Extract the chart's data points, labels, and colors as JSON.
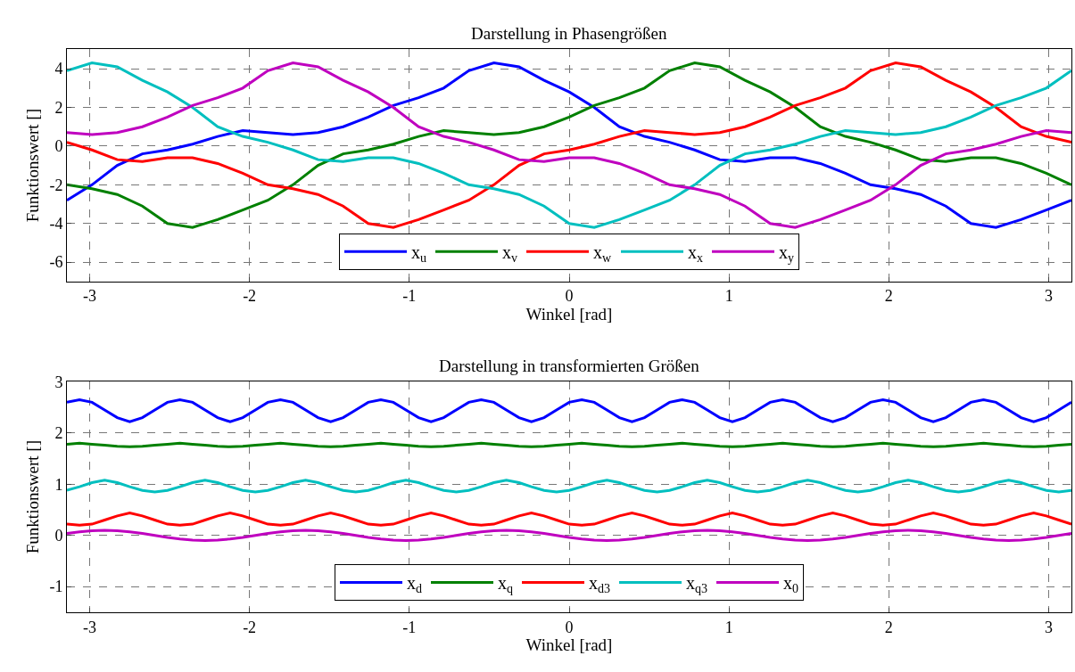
{
  "chart_data": [
    {
      "type": "line",
      "title": "Darstellung in Phasengrößen",
      "xlabel": "Winkel [rad]",
      "ylabel": "Funktionswert []",
      "xlim": [
        -3.142,
        3.142
      ],
      "ylim": [
        -7,
        5
      ],
      "xticks": [
        -3,
        -2,
        -1,
        0,
        1,
        2,
        3
      ],
      "yticks": [
        -6,
        -4,
        -2,
        0,
        2,
        4
      ],
      "grid": true,
      "legend": "bottom",
      "x": [
        -3.142,
        -2.985,
        -2.827,
        -2.67,
        -2.513,
        -2.356,
        -2.199,
        -2.042,
        -1.885,
        -1.728,
        -1.571,
        -1.414,
        -1.257,
        -1.1,
        -0.942,
        -0.785,
        -0.628,
        -0.471,
        -0.314,
        -0.157,
        0,
        0.157,
        0.314,
        0.471,
        0.628,
        0.785,
        0.942,
        1.1,
        1.257,
        1.414,
        1.571,
        1.728,
        1.885,
        2.042,
        2.199,
        2.356,
        2.513,
        2.67,
        2.827,
        2.985,
        3.142
      ],
      "series": [
        {
          "name": "x$_{u}$",
          "color": "#0000ff",
          "values": [
            -2.8,
            -2.0,
            -1.0,
            -0.4,
            -0.2,
            0.1,
            0.5,
            0.8,
            0.7,
            0.6,
            0.7,
            1.0,
            1.5,
            2.1,
            2.5,
            3.0,
            3.9,
            4.3,
            4.1,
            3.4,
            2.8,
            2.0,
            1.0,
            0.5,
            0.2,
            -0.2,
            -0.7,
            -0.8,
            -0.6,
            -0.6,
            -0.9,
            -1.4,
            -2.0,
            -2.2,
            -2.5,
            -3.1,
            -4.0,
            -4.2,
            -3.8,
            -3.3,
            -2.8
          ]
        },
        {
          "name": "x$_{v}$",
          "color": "#008000",
          "values": [
            -2.0,
            -2.2,
            -2.5,
            -3.1,
            -4.0,
            -4.2,
            -3.8,
            -3.3,
            -2.8,
            -2.0,
            -1.0,
            -0.4,
            -0.2,
            0.1,
            0.5,
            0.8,
            0.7,
            0.6,
            0.7,
            1.0,
            1.5,
            2.1,
            2.5,
            3.0,
            3.9,
            4.3,
            4.1,
            3.4,
            2.8,
            2.0,
            1.0,
            0.5,
            0.2,
            -0.2,
            -0.7,
            -0.8,
            -0.6,
            -0.6,
            -0.9,
            -1.4,
            -2.0
          ]
        },
        {
          "name": "x$_{w}$",
          "color": "#ff0000",
          "values": [
            0.2,
            -0.2,
            -0.7,
            -0.8,
            -0.6,
            -0.6,
            -0.9,
            -1.4,
            -2.0,
            -2.2,
            -2.5,
            -3.1,
            -4.0,
            -4.2,
            -3.8,
            -3.3,
            -2.8,
            -2.0,
            -1.0,
            -0.4,
            -0.2,
            0.1,
            0.5,
            0.8,
            0.7,
            0.6,
            0.7,
            1.0,
            1.5,
            2.1,
            2.5,
            3.0,
            3.9,
            4.3,
            4.1,
            3.4,
            2.8,
            2.0,
            1.0,
            0.5,
            0.2
          ]
        },
        {
          "name": "x$_{x}$",
          "color": "#00bfbf",
          "values": [
            3.9,
            4.3,
            4.1,
            3.4,
            2.8,
            2.0,
            1.0,
            0.5,
            0.2,
            -0.2,
            -0.7,
            -0.8,
            -0.6,
            -0.6,
            -0.9,
            -1.4,
            -2.0,
            -2.2,
            -2.5,
            -3.1,
            -4.0,
            -4.2,
            -3.8,
            -3.3,
            -2.8,
            -2.0,
            -1.0,
            -0.4,
            -0.2,
            0.1,
            0.5,
            0.8,
            0.7,
            0.6,
            0.7,
            1.0,
            1.5,
            2.1,
            2.5,
            3.0,
            3.9
          ]
        },
        {
          "name": "x$_{y}$",
          "color": "#bf00bf",
          "values": [
            0.7,
            0.6,
            0.7,
            1.0,
            1.5,
            2.1,
            2.5,
            3.0,
            3.9,
            4.3,
            4.1,
            3.4,
            2.8,
            2.0,
            1.0,
            0.5,
            0.2,
            -0.2,
            -0.7,
            -0.8,
            -0.6,
            -0.6,
            -0.9,
            -1.4,
            -2.0,
            -2.2,
            -2.5,
            -3.1,
            -4.0,
            -4.2,
            -3.8,
            -3.3,
            -2.8,
            -2.0,
            -1.0,
            -0.4,
            -0.2,
            0.1,
            0.5,
            0.8,
            0.7
          ]
        }
      ]
    },
    {
      "type": "line",
      "title": "Darstellung in transformierten Größen",
      "xlabel": "Winkel [rad]",
      "ylabel": "Funktionswert []",
      "xlim": [
        -3.142,
        3.142
      ],
      "ylim": [
        -1.5,
        3
      ],
      "xticks": [
        -3,
        -2,
        -1,
        0,
        1,
        2,
        3
      ],
      "yticks": [
        -1,
        0,
        1,
        2,
        3
      ],
      "grid": true,
      "legend": "bottom",
      "x": [
        -3.142,
        -3.063,
        -2.985,
        -2.906,
        -2.827,
        -2.749,
        -2.67,
        -2.592,
        -2.513,
        -2.435,
        -2.356,
        -2.278,
        -2.199,
        -2.121,
        -2.042,
        -1.963,
        -1.885,
        -1.806,
        -1.728,
        -1.649,
        -1.571,
        -1.492,
        -1.414,
        -1.335,
        -1.257,
        -1.178,
        -1.1,
        -1.021,
        -0.942,
        -0.864,
        -0.785,
        -0.707,
        -0.628,
        -0.55,
        -0.471,
        -0.393,
        -0.314,
        -0.236,
        -0.157,
        -0.079,
        0,
        0.079,
        0.157,
        0.236,
        0.314,
        0.393,
        0.471,
        0.55,
        0.628,
        0.707,
        0.785,
        0.864,
        0.942,
        1.021,
        1.1,
        1.178,
        1.257,
        1.335,
        1.414,
        1.492,
        1.571,
        1.649,
        1.728,
        1.806,
        1.885,
        1.963,
        2.042,
        2.121,
        2.199,
        2.278,
        2.356,
        2.435,
        2.513,
        2.592,
        2.67,
        2.749,
        2.827,
        2.906,
        2.985,
        3.063,
        3.142
      ],
      "series": [
        {
          "name": "x$_{d}$",
          "color": "#0000ff",
          "values": [
            2.6,
            2.65,
            2.6,
            2.45,
            2.3,
            2.22,
            2.3,
            2.45,
            2.6,
            2.65,
            2.6,
            2.45,
            2.3,
            2.22,
            2.3,
            2.45,
            2.6,
            2.65,
            2.6,
            2.45,
            2.3,
            2.22,
            2.3,
            2.45,
            2.6,
            2.65,
            2.6,
            2.45,
            2.3,
            2.22,
            2.3,
            2.45,
            2.6,
            2.65,
            2.6,
            2.45,
            2.3,
            2.22,
            2.3,
            2.45,
            2.6,
            2.65,
            2.6,
            2.45,
            2.3,
            2.22,
            2.3,
            2.45,
            2.6,
            2.65,
            2.6,
            2.45,
            2.3,
            2.22,
            2.3,
            2.45,
            2.6,
            2.65,
            2.6,
            2.45,
            2.3,
            2.22,
            2.3,
            2.45,
            2.6,
            2.65,
            2.6,
            2.45,
            2.3,
            2.22,
            2.3,
            2.45,
            2.6,
            2.65,
            2.6,
            2.45,
            2.3,
            2.22,
            2.3,
            2.45,
            2.6
          ]
        },
        {
          "name": "x$_{q}$",
          "color": "#008000",
          "values": [
            1.78,
            1.8,
            1.78,
            1.76,
            1.74,
            1.73,
            1.74,
            1.76,
            1.78,
            1.8,
            1.78,
            1.76,
            1.74,
            1.73,
            1.74,
            1.76,
            1.78,
            1.8,
            1.78,
            1.76,
            1.74,
            1.73,
            1.74,
            1.76,
            1.78,
            1.8,
            1.78,
            1.76,
            1.74,
            1.73,
            1.74,
            1.76,
            1.78,
            1.8,
            1.78,
            1.76,
            1.74,
            1.73,
            1.74,
            1.76,
            1.78,
            1.8,
            1.78,
            1.76,
            1.74,
            1.73,
            1.74,
            1.76,
            1.78,
            1.8,
            1.78,
            1.76,
            1.74,
            1.73,
            1.74,
            1.76,
            1.78,
            1.8,
            1.78,
            1.76,
            1.74,
            1.73,
            1.74,
            1.76,
            1.78,
            1.8,
            1.78,
            1.76,
            1.74,
            1.73,
            1.74,
            1.76,
            1.78,
            1.8,
            1.78,
            1.76,
            1.74,
            1.73,
            1.74,
            1.76,
            1.78
          ]
        },
        {
          "name": "x$_{d3}$",
          "color": "#ff0000",
          "values": [
            0.22,
            0.2,
            0.22,
            0.3,
            0.38,
            0.44,
            0.38,
            0.3,
            0.22,
            0.2,
            0.22,
            0.3,
            0.38,
            0.44,
            0.38,
            0.3,
            0.22,
            0.2,
            0.22,
            0.3,
            0.38,
            0.44,
            0.38,
            0.3,
            0.22,
            0.2,
            0.22,
            0.3,
            0.38,
            0.44,
            0.38,
            0.3,
            0.22,
            0.2,
            0.22,
            0.3,
            0.38,
            0.44,
            0.38,
            0.3,
            0.22,
            0.2,
            0.22,
            0.3,
            0.38,
            0.44,
            0.38,
            0.3,
            0.22,
            0.2,
            0.22,
            0.3,
            0.38,
            0.44,
            0.38,
            0.3,
            0.22,
            0.2,
            0.22,
            0.3,
            0.38,
            0.44,
            0.38,
            0.3,
            0.22,
            0.2,
            0.22,
            0.3,
            0.38,
            0.44,
            0.38,
            0.3,
            0.22,
            0.2,
            0.22,
            0.3,
            0.38,
            0.44,
            0.38,
            0.3,
            0.22
          ]
        },
        {
          "name": "x$_{q3}$",
          "color": "#00bfbf",
          "values": [
            0.88,
            0.95,
            1.03,
            1.08,
            1.03,
            0.95,
            0.88,
            0.85,
            0.88,
            0.95,
            1.03,
            1.08,
            1.03,
            0.95,
            0.88,
            0.85,
            0.88,
            0.95,
            1.03,
            1.08,
            1.03,
            0.95,
            0.88,
            0.85,
            0.88,
            0.95,
            1.03,
            1.08,
            1.03,
            0.95,
            0.88,
            0.85,
            0.88,
            0.95,
            1.03,
            1.08,
            1.03,
            0.95,
            0.88,
            0.85,
            0.88,
            0.95,
            1.03,
            1.08,
            1.03,
            0.95,
            0.88,
            0.85,
            0.88,
            0.95,
            1.03,
            1.08,
            1.03,
            0.95,
            0.88,
            0.85,
            0.88,
            0.95,
            1.03,
            1.08,
            1.03,
            0.95,
            0.88,
            0.85,
            0.88,
            0.95,
            1.03,
            1.08,
            1.03,
            0.95,
            0.88,
            0.85,
            0.88,
            0.95,
            1.03,
            1.08,
            1.03,
            0.95,
            0.88,
            0.85,
            0.88
          ]
        },
        {
          "name": "x$_{0}$",
          "color": "#bf00bf",
          "values": [
            0.04,
            0.07,
            0.09,
            0.1,
            0.09,
            0.07,
            0.04,
            0,
            -0.04,
            -0.07,
            -0.09,
            -0.1,
            -0.09,
            -0.07,
            -0.04,
            0,
            0.04,
            0.07,
            0.09,
            0.1,
            0.09,
            0.07,
            0.04,
            0,
            -0.04,
            -0.07,
            -0.09,
            -0.1,
            -0.09,
            -0.07,
            -0.04,
            0,
            0.04,
            0.07,
            0.09,
            0.1,
            0.09,
            0.07,
            0.04,
            0,
            -0.04,
            -0.07,
            -0.09,
            -0.1,
            -0.09,
            -0.07,
            -0.04,
            0,
            0.04,
            0.07,
            0.09,
            0.1,
            0.09,
            0.07,
            0.04,
            0,
            -0.04,
            -0.07,
            -0.09,
            -0.1,
            -0.09,
            -0.07,
            -0.04,
            0,
            0.04,
            0.07,
            0.09,
            0.1,
            0.09,
            0.07,
            0.04,
            0,
            -0.04,
            -0.07,
            -0.09,
            -0.1,
            -0.09,
            -0.07,
            -0.04,
            0,
            0.04
          ]
        }
      ]
    }
  ]
}
